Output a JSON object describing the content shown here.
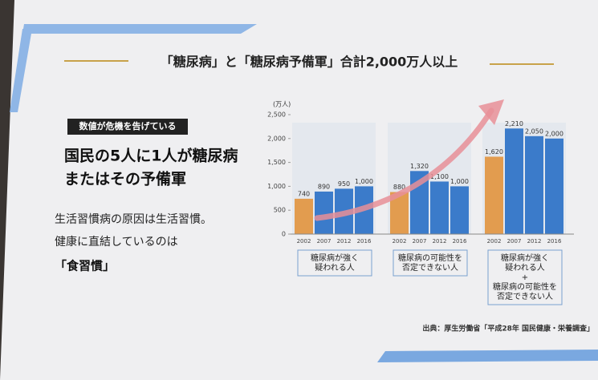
{
  "header": {
    "title": "「糖尿病」と「糖尿病予備軍」合計2,000万人以上"
  },
  "left": {
    "tag": "数値が危機を告げている",
    "headline": [
      "国民の5人に1人が糖尿病",
      "またはその予備軍"
    ],
    "body": [
      "生活習慣病の原因は生活習慣。",
      "健康に直結しているのは"
    ],
    "emphasis": "「食習慣」"
  },
  "chart_data": {
    "type": "grouped_bar",
    "y_unit": "(万人)",
    "ylim": [
      0,
      2500
    ],
    "yticks": [
      0,
      500,
      {
        "value": 1000,
        "label": "1,000"
      },
      {
        "value": 1500,
        "label": "1,500"
      },
      {
        "value": 2000,
        "label": "2,000"
      },
      {
        "value": 2500,
        "label": "2,500"
      }
    ],
    "grid": false,
    "bar_colors": [
      "#e29c4f",
      "#3b7bca",
      "#3b7bca",
      "#3b7bca"
    ],
    "groups": [
      {
        "label": [
          "糖尿病が強く",
          "疑われる人"
        ],
        "categories": [
          "2002",
          "2007",
          "2012",
          "2016"
        ],
        "values": [
          740,
          890,
          950,
          1000
        ],
        "value_labels": [
          "740",
          "890",
          "950",
          "1,000"
        ]
      },
      {
        "label": [
          "糖尿病の可能性を",
          "否定できない人"
        ],
        "categories": [
          "2002",
          "2007",
          "2012",
          "2016"
        ],
        "values": [
          880,
          1320,
          1100,
          1000
        ],
        "value_labels": [
          "880",
          "1,320",
          "1,100",
          "1,000"
        ]
      },
      {
        "label": [
          "糖尿病が強く",
          "疑われる人",
          "+",
          "糖尿病の可能性を",
          "否定できない人"
        ],
        "categories": [
          "2002",
          "2007",
          "2012",
          "2016"
        ],
        "values": [
          1620,
          2210,
          2050,
          2000
        ],
        "value_labels": [
          "1,620",
          "2,210",
          "2,050",
          "2,000"
        ]
      }
    ]
  },
  "source": "出典：厚生労働省「平成28年 国民健康・栄養調査」"
}
